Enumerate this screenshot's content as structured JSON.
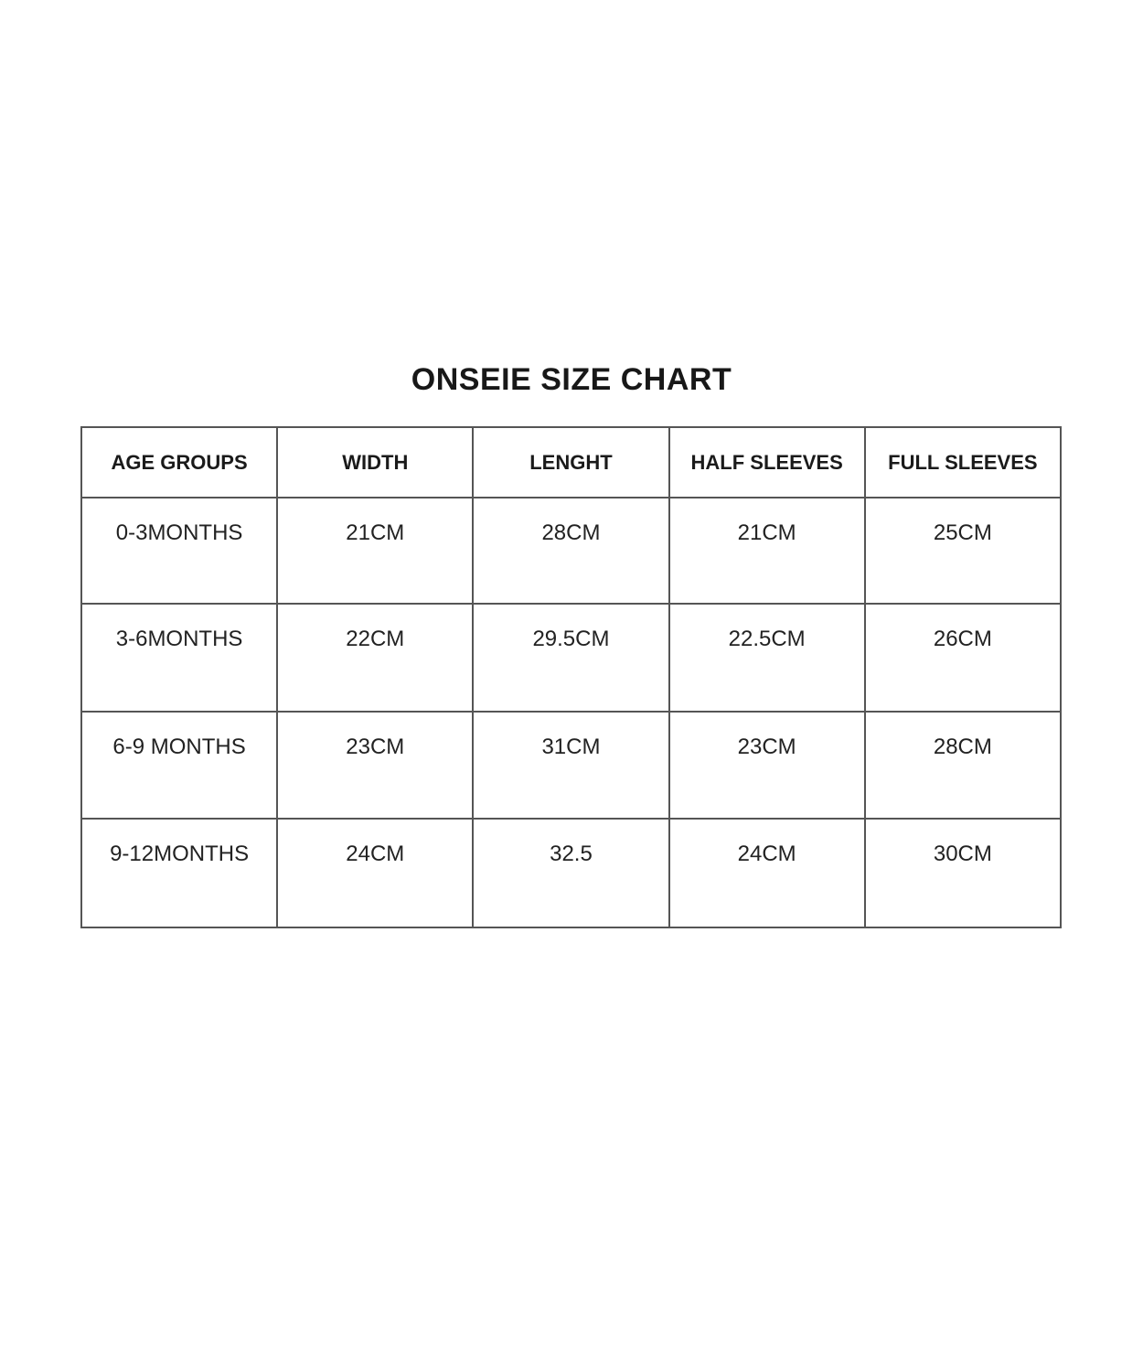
{
  "page": {
    "background_color": "#ffffff",
    "text_color": "#1c1c1c",
    "table_border_color": "#555555"
  },
  "title": "ONSEIE SIZE CHART",
  "table": {
    "headers": [
      "AGE GROUPS",
      "WIDTH",
      "LENGHT",
      "HALF SLEEVES",
      "FULL SLEEVES"
    ],
    "rows": [
      [
        "0-3MONTHS",
        "21CM",
        "28CM",
        "21CM",
        "25CM"
      ],
      [
        "3-6MONTHS",
        "22CM",
        "29.5CM",
        "22.5CM",
        "26CM"
      ],
      [
        "6-9 MONTHS",
        "23CM",
        "31CM",
        "23CM",
        "28CM"
      ],
      [
        "9-12MONTHS",
        "24CM",
        "32.5",
        "24CM",
        "30CM"
      ]
    ]
  },
  "chart_data": {
    "type": "table",
    "title": "ONSEIE SIZE CHART",
    "columns": [
      "AGE GROUPS",
      "WIDTH",
      "LENGHT",
      "HALF SLEEVES",
      "FULL SLEEVES"
    ],
    "rows": [
      [
        "0-3MONTHS",
        "21CM",
        "28CM",
        "21CM",
        "25CM"
      ],
      [
        "3-6MONTHS",
        "22CM",
        "29.5CM",
        "22.5CM",
        "26CM"
      ],
      [
        "6-9 MONTHS",
        "23CM",
        "31CM",
        "23CM",
        "28CM"
      ],
      [
        "9-12MONTHS",
        "24CM",
        "32.5",
        "24CM",
        "30CM"
      ]
    ]
  }
}
